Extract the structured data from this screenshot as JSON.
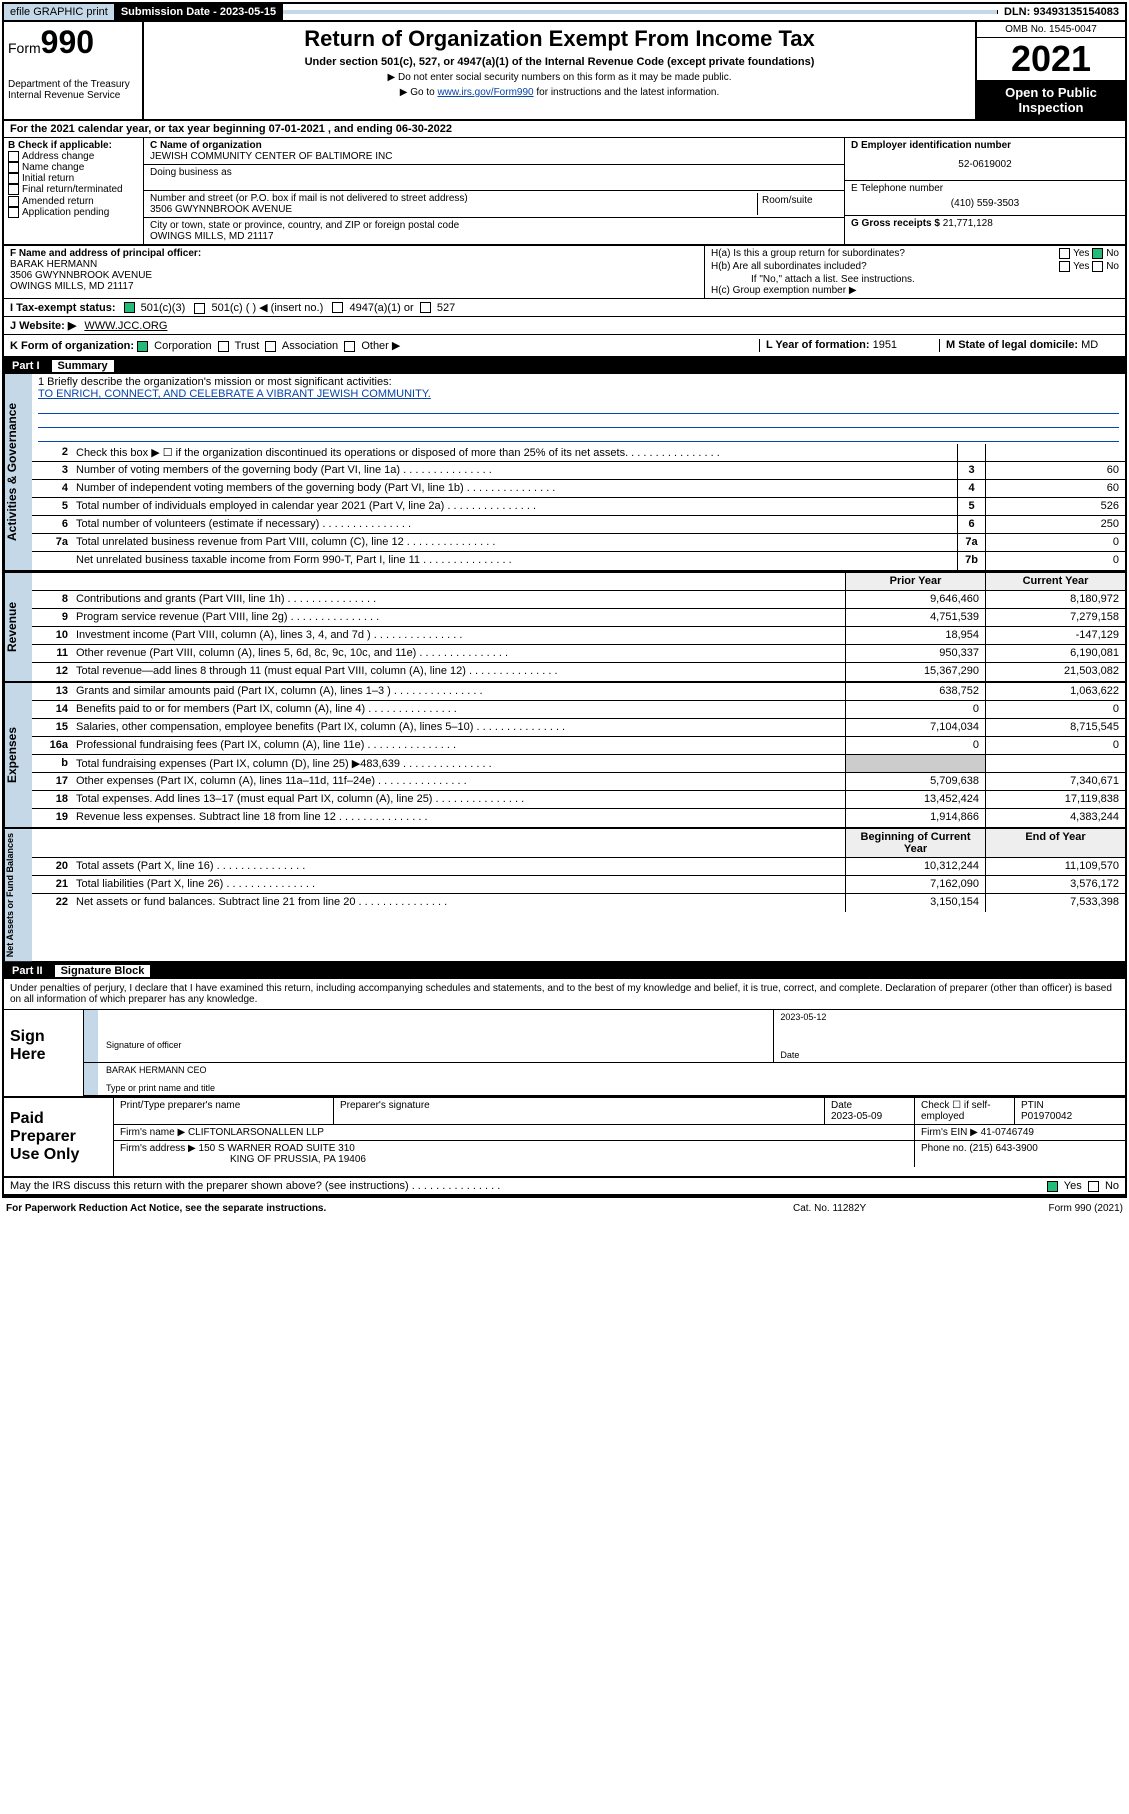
{
  "topbar": {
    "efile": "efile GRAPHIC print",
    "subm_lbl": "Submission Date - 2023-05-15",
    "dln": "DLN: 93493135154083"
  },
  "header": {
    "form_lbl": "Form",
    "form_num": "990",
    "dept": "Department of the Treasury Internal Revenue Service",
    "title": "Return of Organization Exempt From Income Tax",
    "subtitle": "Under section 501(c), 527, or 4947(a)(1) of the Internal Revenue Code (except private foundations)",
    "note1": "▶ Do not enter social security numbers on this form as it may be made public.",
    "note2_pre": "▶ Go to ",
    "note2_link": "www.irs.gov/Form990",
    "note2_post": " for instructions and the latest information.",
    "omb": "OMB No. 1545-0047",
    "year": "2021",
    "open": "Open to Public Inspection"
  },
  "period": "For the 2021 calendar year, or tax year beginning 07-01-2021   , and ending 06-30-2022",
  "colB": {
    "hdr": "B Check if applicable:",
    "items": [
      "Address change",
      "Name change",
      "Initial return",
      "Final return/terminated",
      "Amended return",
      "Application pending"
    ]
  },
  "colC": {
    "name_lbl": "C Name of organization",
    "name": "JEWISH COMMUNITY CENTER OF BALTIMORE INC",
    "dba_lbl": "Doing business as",
    "addr_lbl": "Number and street (or P.O. box if mail is not delivered to street address)",
    "addr": "3506 GWYNNBROOK AVENUE",
    "room_lbl": "Room/suite",
    "city_lbl": "City or town, state or province, country, and ZIP or foreign postal code",
    "city": "OWINGS MILLS, MD  21117"
  },
  "colD": {
    "ein_lbl": "D Employer identification number",
    "ein": "52-0619002",
    "tel_lbl": "E Telephone number",
    "tel": "(410) 559-3503",
    "gross_lbl": "G Gross receipts $",
    "gross": "21,771,128"
  },
  "f": {
    "lbl": "F Name and address of principal officer:",
    "name": "BARAK HERMANN",
    "addr1": "3506 GWYNNBROOK AVENUE",
    "addr2": "OWINGS MILLS, MD  21117"
  },
  "h": {
    "a_lbl": "H(a)  Is this a group return for subordinates?",
    "b_lbl": "H(b)  Are all subordinates included?",
    "b_note": "If \"No,\" attach a list. See instructions.",
    "c_lbl": "H(c)  Group exemption number ▶",
    "yes": "Yes",
    "no": "No"
  },
  "i": {
    "lbl": "I   Tax-exempt status:",
    "opts": [
      "501(c)(3)",
      "501(c) (  ) ◀ (insert no.)",
      "4947(a)(1) or",
      "527"
    ]
  },
  "j": {
    "lbl": "J   Website: ▶",
    "val": "WWW.JCC.ORG"
  },
  "k": {
    "lbl": "K Form of organization:",
    "opts": [
      "Corporation",
      "Trust",
      "Association",
      "Other ▶"
    ],
    "l_lbl": "L Year of formation:",
    "l_val": "1951",
    "m_lbl": "M State of legal domicile:",
    "m_val": "MD"
  },
  "part1": {
    "num": "Part I",
    "title": "Summary"
  },
  "mission": {
    "q": "1   Briefly describe the organization's mission or most significant activities:",
    "txt": "TO ENRICH, CONNECT, AND CELEBRATE A VIBRANT JEWISH COMMUNITY."
  },
  "gov_rows": [
    {
      "n": "2",
      "d": "Check this box ▶ ☐  if the organization discontinued its operations or disposed of more than 25% of its net assets.",
      "b": "",
      "v": ""
    },
    {
      "n": "3",
      "d": "Number of voting members of the governing body (Part VI, line 1a)",
      "b": "3",
      "v": "60"
    },
    {
      "n": "4",
      "d": "Number of independent voting members of the governing body (Part VI, line 1b)",
      "b": "4",
      "v": "60"
    },
    {
      "n": "5",
      "d": "Total number of individuals employed in calendar year 2021 (Part V, line 2a)",
      "b": "5",
      "v": "526"
    },
    {
      "n": "6",
      "d": "Total number of volunteers (estimate if necessary)",
      "b": "6",
      "v": "250"
    },
    {
      "n": "7a",
      "d": "Total unrelated business revenue from Part VIII, column (C), line 12",
      "b": "7a",
      "v": "0"
    },
    {
      "n": "",
      "d": "Net unrelated business taxable income from Form 990-T, Part I, line 11",
      "b": "7b",
      "v": "0"
    }
  ],
  "col_hdr": {
    "prior": "Prior Year",
    "current": "Current Year"
  },
  "rev_rows": [
    {
      "n": "8",
      "d": "Contributions and grants (Part VIII, line 1h)",
      "p": "9,646,460",
      "c": "8,180,972"
    },
    {
      "n": "9",
      "d": "Program service revenue (Part VIII, line 2g)",
      "p": "4,751,539",
      "c": "7,279,158"
    },
    {
      "n": "10",
      "d": "Investment income (Part VIII, column (A), lines 3, 4, and 7d )",
      "p": "18,954",
      "c": "-147,129"
    },
    {
      "n": "11",
      "d": "Other revenue (Part VIII, column (A), lines 5, 6d, 8c, 9c, 10c, and 11e)",
      "p": "950,337",
      "c": "6,190,081"
    },
    {
      "n": "12",
      "d": "Total revenue—add lines 8 through 11 (must equal Part VIII, column (A), line 12)",
      "p": "15,367,290",
      "c": "21,503,082"
    }
  ],
  "exp_rows": [
    {
      "n": "13",
      "d": "Grants and similar amounts paid (Part IX, column (A), lines 1–3 )",
      "p": "638,752",
      "c": "1,063,622"
    },
    {
      "n": "14",
      "d": "Benefits paid to or for members (Part IX, column (A), line 4)",
      "p": "0",
      "c": "0"
    },
    {
      "n": "15",
      "d": "Salaries, other compensation, employee benefits (Part IX, column (A), lines 5–10)",
      "p": "7,104,034",
      "c": "8,715,545"
    },
    {
      "n": "16a",
      "d": "Professional fundraising fees (Part IX, column (A), line 11e)",
      "p": "0",
      "c": "0"
    },
    {
      "n": "b",
      "d": "Total fundraising expenses (Part IX, column (D), line 25) ▶483,639",
      "p": "",
      "c": "",
      "shade": true
    },
    {
      "n": "17",
      "d": "Other expenses (Part IX, column (A), lines 11a–11d, 11f–24e)",
      "p": "5,709,638",
      "c": "7,340,671"
    },
    {
      "n": "18",
      "d": "Total expenses. Add lines 13–17 (must equal Part IX, column (A), line 25)",
      "p": "13,452,424",
      "c": "17,119,838"
    },
    {
      "n": "19",
      "d": "Revenue less expenses. Subtract line 18 from line 12",
      "p": "1,914,866",
      "c": "4,383,244"
    }
  ],
  "na_hdr": {
    "begin": "Beginning of Current Year",
    "end": "End of Year"
  },
  "na_rows": [
    {
      "n": "20",
      "d": "Total assets (Part X, line 16)",
      "p": "10,312,244",
      "c": "11,109,570"
    },
    {
      "n": "21",
      "d": "Total liabilities (Part X, line 26)",
      "p": "7,162,090",
      "c": "3,576,172"
    },
    {
      "n": "22",
      "d": "Net assets or fund balances. Subtract line 21 from line 20",
      "p": "3,150,154",
      "c": "7,533,398"
    }
  ],
  "part2": {
    "num": "Part II",
    "title": "Signature Block"
  },
  "decl": "Under penalties of perjury, I declare that I have examined this return, including accompanying schedules and statements, and to the best of my knowledge and belief, it is true, correct, and complete. Declaration of preparer (other than officer) is based on all information of which preparer has any knowledge.",
  "sign": {
    "lbl": "Sign Here",
    "sig_lbl": "Signature of officer",
    "date_val": "2023-05-12",
    "date_lbl": "Date",
    "name": "BARAK HERMANN CEO",
    "name_lbl": "Type or print name and title"
  },
  "prep": {
    "lbl": "Paid Preparer Use Only",
    "r1": {
      "c1": "Print/Type preparer's name",
      "c2": "Preparer's signature",
      "c3_lbl": "Date",
      "c3": "2023-05-09",
      "c4": "Check ☐ if self-employed",
      "c5_lbl": "PTIN",
      "c5": "P01970042"
    },
    "r2": {
      "lbl": "Firm's name   ▶",
      "val": "CLIFTONLARSONALLEN LLP",
      "ein_lbl": "Firm's EIN ▶",
      "ein": "41-0746749"
    },
    "r3": {
      "lbl": "Firm's address ▶",
      "val1": "150 S WARNER ROAD SUITE 310",
      "val2": "KING OF PRUSSIA, PA  19406",
      "ph_lbl": "Phone no.",
      "ph": "(215) 643-3900"
    }
  },
  "discuss": "May the IRS discuss this return with the preparer shown above? (see instructions)",
  "footer": {
    "l": "For Paperwork Reduction Act Notice, see the separate instructions.",
    "m": "Cat. No. 11282Y",
    "r": "Form 990 (2021)"
  }
}
